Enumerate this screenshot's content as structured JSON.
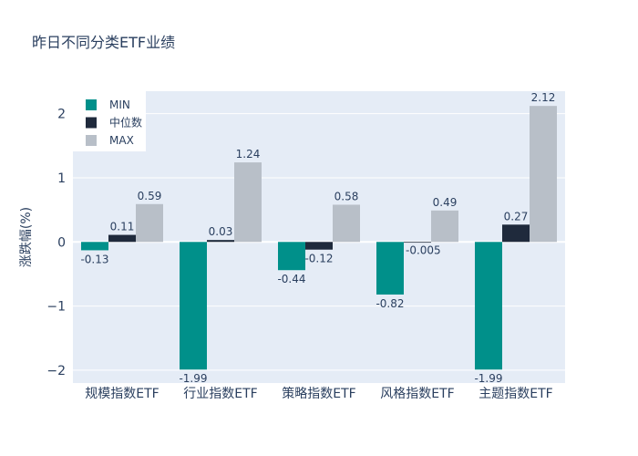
{
  "chart_data": {
    "type": "bar",
    "title": "昨日不同分类ETF业绩",
    "ylabel": "涨跌幅(%)",
    "xlabel": "",
    "ylim": [
      -2.2,
      2.35
    ],
    "yticks": [
      -2,
      -1,
      0,
      1,
      2
    ],
    "ytick_labels": [
      "−2",
      "−1",
      "0",
      "1",
      "2"
    ],
    "categories": [
      "规模指数ETF",
      "行业指数ETF",
      "策略指数ETF",
      "风格指数ETF",
      "主题指数ETF"
    ],
    "series": [
      {
        "name": "MIN",
        "color": "#00908a",
        "values": [
          -0.13,
          -1.99,
          -0.44,
          -0.82,
          -1.99
        ],
        "labels": [
          "-0.13",
          "-1.99",
          "-0.44",
          "-0.82",
          "-1.99"
        ]
      },
      {
        "name": "中位数",
        "color": "#1f2a3c",
        "values": [
          0.11,
          0.03,
          -0.12,
          -0.005,
          0.27
        ],
        "labels": [
          "0.11",
          "0.03",
          "-0.12",
          "-0.005",
          "0.27"
        ]
      },
      {
        "name": "MAX",
        "color": "#b8bfc8",
        "values": [
          0.59,
          1.24,
          0.58,
          0.49,
          2.12
        ],
        "labels": [
          "0.59",
          "1.24",
          "0.58",
          "0.49",
          "2.12"
        ]
      }
    ],
    "legend_position": "top-left",
    "grid": true
  }
}
